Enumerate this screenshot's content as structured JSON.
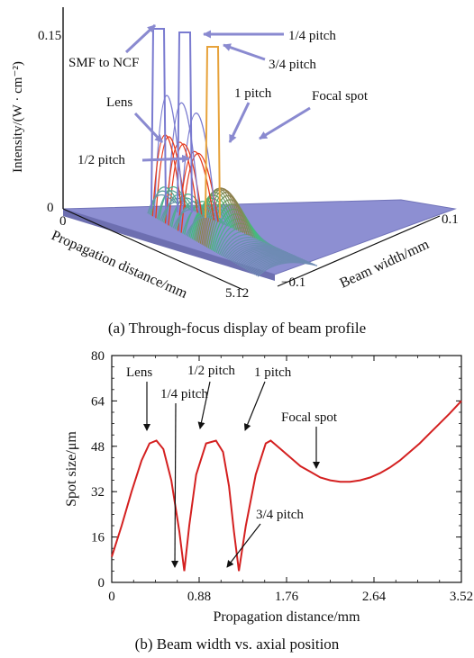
{
  "chart_data": [
    {
      "type": "surface",
      "caption": "(a) Through-focus display of beam profile",
      "zlabel": "Intensity/(W · cm⁻²)",
      "xlabel": "Propagation distance/mm",
      "ylabel": "Beam width/mm",
      "z_ticks": [
        "0",
        "0.15"
      ],
      "x_ticks": [
        "0",
        "5.12"
      ],
      "y_ticks": [
        "0.1",
        "−0.1"
      ],
      "annotations": [
        "SMF to NCF",
        "1/4 pitch",
        "3/4 pitch",
        "Lens",
        "1 pitch",
        "Focal spot",
        "1/2 pitch"
      ],
      "colors": {
        "surface_low": "#7b7cc4",
        "surface_high": "#e53b1e",
        "surface_mid": "#3fc07a"
      }
    },
    {
      "type": "line",
      "caption": "(b) Beam width vs. axial position",
      "xlabel": "Propagation distance/mm",
      "ylabel": "Spot size/μm",
      "xlim": [
        0,
        3.52
      ],
      "ylim": [
        0,
        80
      ],
      "x_ticks": [
        "0",
        "0.88",
        "1.76",
        "2.64",
        "3.52"
      ],
      "y_ticks": [
        "0",
        "16",
        "32",
        "48",
        "64",
        "80"
      ],
      "series": [
        {
          "x": [
            0,
            0.1,
            0.2,
            0.3,
            0.38,
            0.45,
            0.52,
            0.6,
            0.68,
            0.73,
            0.78,
            0.85,
            0.95,
            1.05,
            1.12,
            1.18,
            1.23,
            1.28,
            1.35,
            1.45,
            1.55,
            1.6,
            1.7,
            1.8,
            1.9,
            2.0,
            2.1,
            2.2,
            2.3,
            2.4,
            2.5,
            2.6,
            2.7,
            2.8,
            2.9,
            3.0,
            3.1,
            3.2,
            3.3,
            3.4,
            3.52
          ],
          "y": [
            9,
            20,
            32,
            43,
            49,
            50,
            47,
            36,
            18,
            4,
            20,
            38,
            49,
            50,
            46,
            34,
            18,
            4,
            20,
            38,
            49,
            50,
            47,
            44,
            41,
            39,
            37,
            36,
            35.5,
            35.5,
            36,
            37,
            38.5,
            40.5,
            43,
            46,
            49,
            52.5,
            56,
            59.5,
            64
          ]
        }
      ],
      "color": "#d42020",
      "annotations": [
        "Lens",
        "1/4 pitch",
        "1/2 pitch",
        "1 pitch",
        "Focal spot",
        "3/4 pitch"
      ]
    }
  ]
}
